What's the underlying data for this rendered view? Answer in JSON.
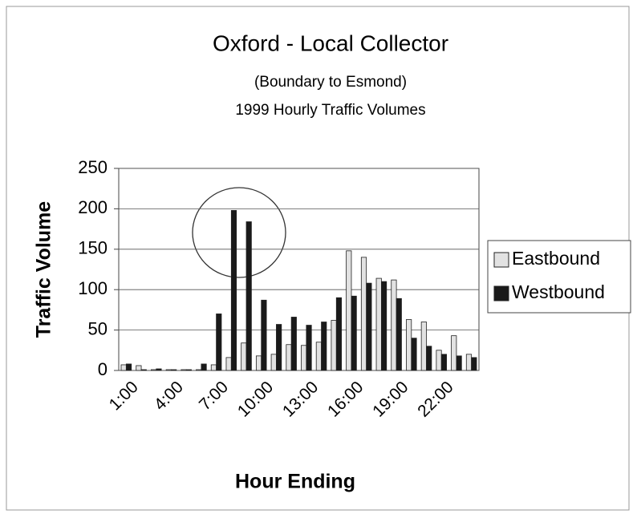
{
  "chart_data": {
    "type": "bar",
    "title": "Oxford - Local Collector",
    "subtitle": [
      "(Boundary to Esmond)",
      "1999 Hourly Traffic Volumes"
    ],
    "x_label": "Hour Ending",
    "y_label": "Traffic Volume",
    "categories": [
      "1:00",
      null,
      null,
      "4:00",
      null,
      null,
      "7:00",
      null,
      null,
      "10:00",
      null,
      null,
      "13:00",
      null,
      null,
      "16:00",
      null,
      null,
      "19:00",
      null,
      null,
      "22:00",
      null,
      null
    ],
    "series": [
      {
        "name": "Eastbound",
        "color": "#e2e2e2",
        "values": [
          7,
          6,
          1,
          1,
          1,
          1,
          7,
          16,
          34,
          18,
          20,
          32,
          31,
          35,
          62,
          148,
          140,
          114,
          112,
          63,
          60,
          25,
          43,
          20
        ]
      },
      {
        "name": "Westbound",
        "color": "#1a1a1a",
        "values": [
          8,
          1,
          2,
          1,
          1,
          8,
          70,
          198,
          184,
          87,
          57,
          66,
          56,
          60,
          90,
          92,
          108,
          110,
          89,
          40,
          30,
          20,
          18,
          16
        ]
      }
    ],
    "ylim": [
      0,
      250
    ],
    "yticks": [
      0,
      50,
      100,
      150,
      200,
      250
    ],
    "grid": true,
    "legend": "right"
  }
}
